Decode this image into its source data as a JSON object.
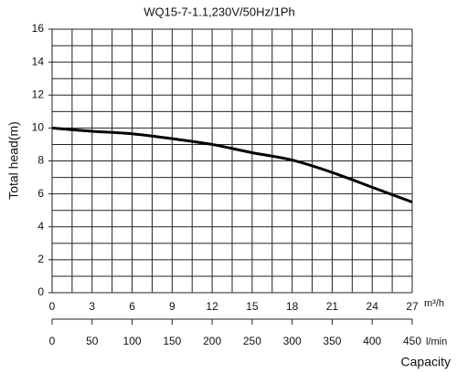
{
  "chart_data": {
    "type": "line",
    "title": "WQ15-7-1.1,230V/50Hz/1Ph",
    "ylabel": "Total head(m)",
    "xunit": "m³/h",
    "x2unit": "l/min",
    "xlabel": "Capacity",
    "x": [
      0,
      3,
      6,
      9,
      12,
      15,
      18,
      21,
      24,
      27
    ],
    "series": [
      {
        "name": "WQ15-7-1.1",
        "color": "#000000",
        "values": [
          10.0,
          9.8,
          9.65,
          9.35,
          9.0,
          8.5,
          8.05,
          7.3,
          6.4,
          5.5
        ]
      }
    ],
    "xlim": [
      0,
      27
    ],
    "xticks": [
      0,
      3,
      6,
      9,
      12,
      15,
      18,
      21,
      24,
      27
    ],
    "x_minor_ticks": [
      1.5,
      4.5,
      7.5,
      10.5,
      13.5,
      16.5,
      19.5,
      22.5,
      25.5
    ],
    "ylim": [
      0,
      16
    ],
    "yticks": [
      0,
      2,
      4,
      6,
      8,
      10,
      12,
      14,
      16
    ],
    "y_minor_ticks": [
      1,
      3,
      5,
      7,
      9,
      11,
      13,
      15
    ],
    "x2lim": [
      0,
      450
    ],
    "x2ticks": [
      0,
      50,
      100,
      150,
      200,
      250,
      300,
      350,
      400,
      450
    ],
    "grid": true
  }
}
